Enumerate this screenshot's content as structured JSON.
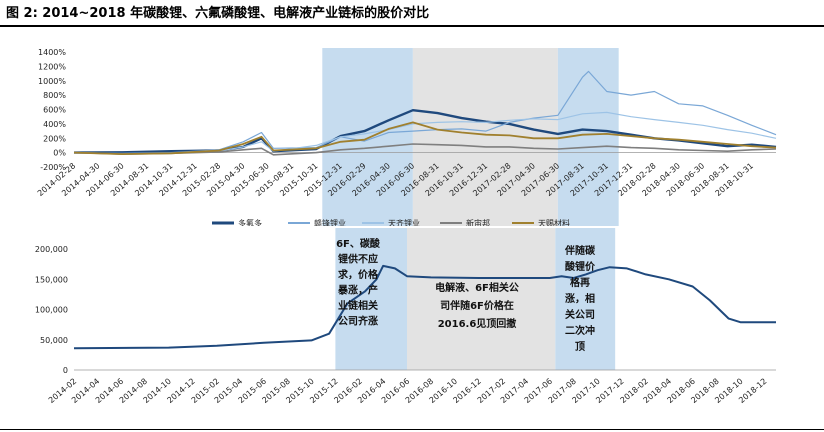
{
  "title": "图 2:  2014~2018 年碳酸锂、六氟磷酸锂、电解液产业链标的股价对比",
  "chart_data": [
    {
      "type": "line",
      "ylim": [
        -200,
        1400
      ],
      "ytick_labels": [
        "1400%",
        "1200%",
        "1000%",
        "800%",
        "600%",
        "400%",
        "200%",
        "0%",
        "-200%"
      ],
      "xtick_labels": [
        "2014-02-28",
        "2014-04-30",
        "2014-06-30",
        "2014-08-31",
        "2014-10-31",
        "2014-12-31",
        "2015-02-28",
        "2015-04-30",
        "2015-06-30",
        "2015-08-31",
        "2015-10-31",
        "2015-12-31",
        "2016-02-29",
        "2016-04-30",
        "2016-06-30",
        "2016-08-31",
        "2016-10-31",
        "2016-12-31",
        "2017-02-28",
        "2017-04-30",
        "2017-06-30",
        "2017-08-31",
        "2017-10-31",
        "2017-12-31",
        "2018-02-28",
        "2018-04-30",
        "2018-06-30",
        "2018-08-31",
        "2018-10-31"
      ],
      "shaded_regions": [
        {
          "from": "2015-11-15",
          "to": "2016-06-30",
          "color": "#c6dcef"
        },
        {
          "from": "2016-06-30",
          "to": "2017-06-30",
          "color": "#e3e3e3"
        },
        {
          "from": "2017-06-30",
          "to": "2017-11-30",
          "color": "#c6dcef"
        }
      ],
      "series": [
        {
          "name": "多氟多",
          "color": "#1f497d",
          "points": [
            [
              "2014-02-28",
              0
            ],
            [
              "2014-06-30",
              5
            ],
            [
              "2014-10-31",
              20
            ],
            [
              "2015-02-28",
              30
            ],
            [
              "2015-04-30",
              80
            ],
            [
              "2015-06-15",
              200
            ],
            [
              "2015-07-15",
              20
            ],
            [
              "2015-10-31",
              50
            ],
            [
              "2015-12-31",
              230
            ],
            [
              "2016-02-29",
              300
            ],
            [
              "2016-04-30",
              450
            ],
            [
              "2016-06-30",
              590
            ],
            [
              "2016-08-31",
              550
            ],
            [
              "2016-10-31",
              480
            ],
            [
              "2016-12-31",
              430
            ],
            [
              "2017-02-28",
              400
            ],
            [
              "2017-04-30",
              320
            ],
            [
              "2017-06-30",
              260
            ],
            [
              "2017-08-31",
              320
            ],
            [
              "2017-10-31",
              300
            ],
            [
              "2017-12-31",
              250
            ],
            [
              "2018-02-28",
              200
            ],
            [
              "2018-04-30",
              170
            ],
            [
              "2018-06-30",
              130
            ],
            [
              "2018-08-31",
              90
            ],
            [
              "2018-10-31",
              110
            ],
            [
              "2018-12-31",
              80
            ]
          ]
        },
        {
          "name": "赣锋锂业",
          "color": "#7aa7d6",
          "points": [
            [
              "2014-02-28",
              0
            ],
            [
              "2014-06-30",
              -10
            ],
            [
              "2014-10-31",
              0
            ],
            [
              "2015-02-28",
              40
            ],
            [
              "2015-04-30",
              150
            ],
            [
              "2015-06-15",
              280
            ],
            [
              "2015-07-15",
              60
            ],
            [
              "2015-10-31",
              70
            ],
            [
              "2015-12-31",
              220
            ],
            [
              "2016-02-29",
              160
            ],
            [
              "2016-04-30",
              280
            ],
            [
              "2016-06-30",
              300
            ],
            [
              "2016-08-31",
              320
            ],
            [
              "2016-10-31",
              330
            ],
            [
              "2016-12-31",
              300
            ],
            [
              "2017-02-28",
              420
            ],
            [
              "2017-04-30",
              480
            ],
            [
              "2017-06-30",
              520
            ],
            [
              "2017-08-31",
              1050
            ],
            [
              "2017-09-15",
              1130
            ],
            [
              "2017-10-31",
              850
            ],
            [
              "2017-12-31",
              800
            ],
            [
              "2018-02-28",
              850
            ],
            [
              "2018-04-30",
              680
            ],
            [
              "2018-06-30",
              650
            ],
            [
              "2018-08-31",
              520
            ],
            [
              "2018-10-31",
              380
            ],
            [
              "2018-12-31",
              250
            ]
          ]
        },
        {
          "name": "天齐锂业",
          "color": "#9dc3e6",
          "points": [
            [
              "2014-02-28",
              0
            ],
            [
              "2014-06-30",
              -20
            ],
            [
              "2014-10-31",
              -10
            ],
            [
              "2015-02-28",
              20
            ],
            [
              "2015-04-30",
              80
            ],
            [
              "2015-06-15",
              150
            ],
            [
              "2015-07-15",
              20
            ],
            [
              "2015-10-31",
              100
            ],
            [
              "2015-12-31",
              220
            ],
            [
              "2016-02-29",
              260
            ],
            [
              "2016-04-30",
              320
            ],
            [
              "2016-06-30",
              400
            ],
            [
              "2016-08-31",
              420
            ],
            [
              "2016-10-31",
              430
            ],
            [
              "2016-12-31",
              420
            ],
            [
              "2017-02-28",
              450
            ],
            [
              "2017-04-30",
              470
            ],
            [
              "2017-06-30",
              460
            ],
            [
              "2017-08-31",
              540
            ],
            [
              "2017-10-31",
              560
            ],
            [
              "2017-12-31",
              500
            ],
            [
              "2018-02-28",
              460
            ],
            [
              "2018-04-30",
              420
            ],
            [
              "2018-06-30",
              380
            ],
            [
              "2018-08-31",
              320
            ],
            [
              "2018-10-31",
              270
            ],
            [
              "2018-12-31",
              200
            ]
          ]
        },
        {
          "name": "新宙邦",
          "color": "#7f7f7f",
          "points": [
            [
              "2014-02-28",
              0
            ],
            [
              "2014-06-30",
              -20
            ],
            [
              "2014-10-31",
              -10
            ],
            [
              "2015-02-28",
              10
            ],
            [
              "2015-04-30",
              40
            ],
            [
              "2015-06-15",
              60
            ],
            [
              "2015-07-15",
              -30
            ],
            [
              "2015-10-31",
              0
            ],
            [
              "2015-12-31",
              40
            ],
            [
              "2016-02-29",
              60
            ],
            [
              "2016-04-30",
              90
            ],
            [
              "2016-06-30",
              120
            ],
            [
              "2016-08-31",
              110
            ],
            [
              "2016-10-31",
              100
            ],
            [
              "2016-12-31",
              80
            ],
            [
              "2017-02-28",
              80
            ],
            [
              "2017-04-30",
              60
            ],
            [
              "2017-06-30",
              50
            ],
            [
              "2017-08-31",
              70
            ],
            [
              "2017-10-31",
              90
            ],
            [
              "2017-12-31",
              70
            ],
            [
              "2018-02-28",
              60
            ],
            [
              "2018-04-30",
              40
            ],
            [
              "2018-06-30",
              30
            ],
            [
              "2018-08-31",
              20
            ],
            [
              "2018-10-31",
              40
            ],
            [
              "2018-12-31",
              50
            ]
          ]
        },
        {
          "name": "天赐材料",
          "color": "#a0802e",
          "points": [
            [
              "2014-02-28",
              0
            ],
            [
              "2014-06-30",
              -20
            ],
            [
              "2014-10-31",
              -10
            ],
            [
              "2015-02-28",
              30
            ],
            [
              "2015-04-30",
              120
            ],
            [
              "2015-06-15",
              220
            ],
            [
              "2015-07-15",
              30
            ],
            [
              "2015-10-31",
              60
            ],
            [
              "2015-12-31",
              150
            ],
            [
              "2016-02-29",
              180
            ],
            [
              "2016-04-30",
              330
            ],
            [
              "2016-06-30",
              420
            ],
            [
              "2016-08-31",
              320
            ],
            [
              "2016-10-31",
              280
            ],
            [
              "2016-12-31",
              250
            ],
            [
              "2017-02-28",
              240
            ],
            [
              "2017-04-30",
              200
            ],
            [
              "2017-06-30",
              200
            ],
            [
              "2017-08-31",
              250
            ],
            [
              "2017-10-31",
              260
            ],
            [
              "2017-12-31",
              230
            ],
            [
              "2018-02-28",
              200
            ],
            [
              "2018-04-30",
              180
            ],
            [
              "2018-06-30",
              150
            ],
            [
              "2018-08-31",
              120
            ],
            [
              "2018-10-31",
              90
            ],
            [
              "2018-12-31",
              70
            ]
          ]
        }
      ]
    },
    {
      "type": "line",
      "ylim": [
        0,
        200000
      ],
      "ytick_labels": [
        "200,000",
        "150,000",
        "100,000",
        "50,000",
        "0"
      ],
      "xtick_labels": [
        "2014-02",
        "2014-04",
        "2014-06",
        "2014-08",
        "2014-10",
        "2014-12",
        "2015-02",
        "2015-04",
        "2015-06",
        "2015-08",
        "2015-10",
        "2015-12",
        "2016-02",
        "2016-04",
        "2016-06",
        "2016-08",
        "2016-10",
        "2016-12",
        "2017-02",
        "2017-04",
        "2017-06",
        "2017-08",
        "2017-10",
        "2017-12",
        "2018-02",
        "2018-04",
        "2018-06",
        "2018-08",
        "2018-10",
        "2018-12"
      ],
      "shaded_regions": [
        {
          "from": "2015-12-01",
          "to": "2016-06-01",
          "color": "#c6dcef"
        },
        {
          "from": "2016-06-01",
          "to": "2017-06-15",
          "color": "#e3e3e3"
        },
        {
          "from": "2017-06-15",
          "to": "2017-11-15",
          "color": "#c6dcef"
        }
      ],
      "series": [
        {
          "name": "",
          "color": "#1f497d",
          "points": [
            [
              "2014-02-01",
              36000
            ],
            [
              "2014-10-01",
              37000
            ],
            [
              "2015-02-01",
              40000
            ],
            [
              "2015-06-01",
              45000
            ],
            [
              "2015-10-01",
              49000
            ],
            [
              "2015-11-15",
              60000
            ],
            [
              "2016-01-01",
              110000
            ],
            [
              "2016-02-15",
              130000
            ],
            [
              "2016-03-15",
              150000
            ],
            [
              "2016-04-01",
              172000
            ],
            [
              "2016-05-01",
              168000
            ],
            [
              "2016-06-01",
              155000
            ],
            [
              "2016-08-01",
              153000
            ],
            [
              "2016-12-01",
              152000
            ],
            [
              "2017-06-01",
              152000
            ],
            [
              "2017-07-01",
              155000
            ],
            [
              "2017-08-01",
              152000
            ],
            [
              "2017-09-01",
              158000
            ],
            [
              "2017-10-01",
              165000
            ],
            [
              "2017-11-01",
              170000
            ],
            [
              "2017-12-15",
              168000
            ],
            [
              "2018-02-01",
              158000
            ],
            [
              "2018-04-01",
              150000
            ],
            [
              "2018-06-01",
              138000
            ],
            [
              "2018-07-15",
              115000
            ],
            [
              "2018-09-01",
              85000
            ],
            [
              "2018-10-01",
              79000
            ],
            [
              "2018-12-31",
              79000
            ]
          ]
        }
      ],
      "annotations": [
        {
          "lines": [
            "6F、碳酸",
            "锂供不应",
            "求，价格",
            "暴涨，产",
            "业链相关",
            "公司齐涨"
          ]
        },
        {
          "lines": [
            "电解液、6F相关公",
            "司伴随6F价格在",
            "2016.6见顶回撤"
          ]
        },
        {
          "lines": [
            "伴随碳",
            "酸锂价",
            "格再",
            "涨，相",
            "关公司",
            "二次冲",
            "顶"
          ]
        }
      ]
    }
  ]
}
